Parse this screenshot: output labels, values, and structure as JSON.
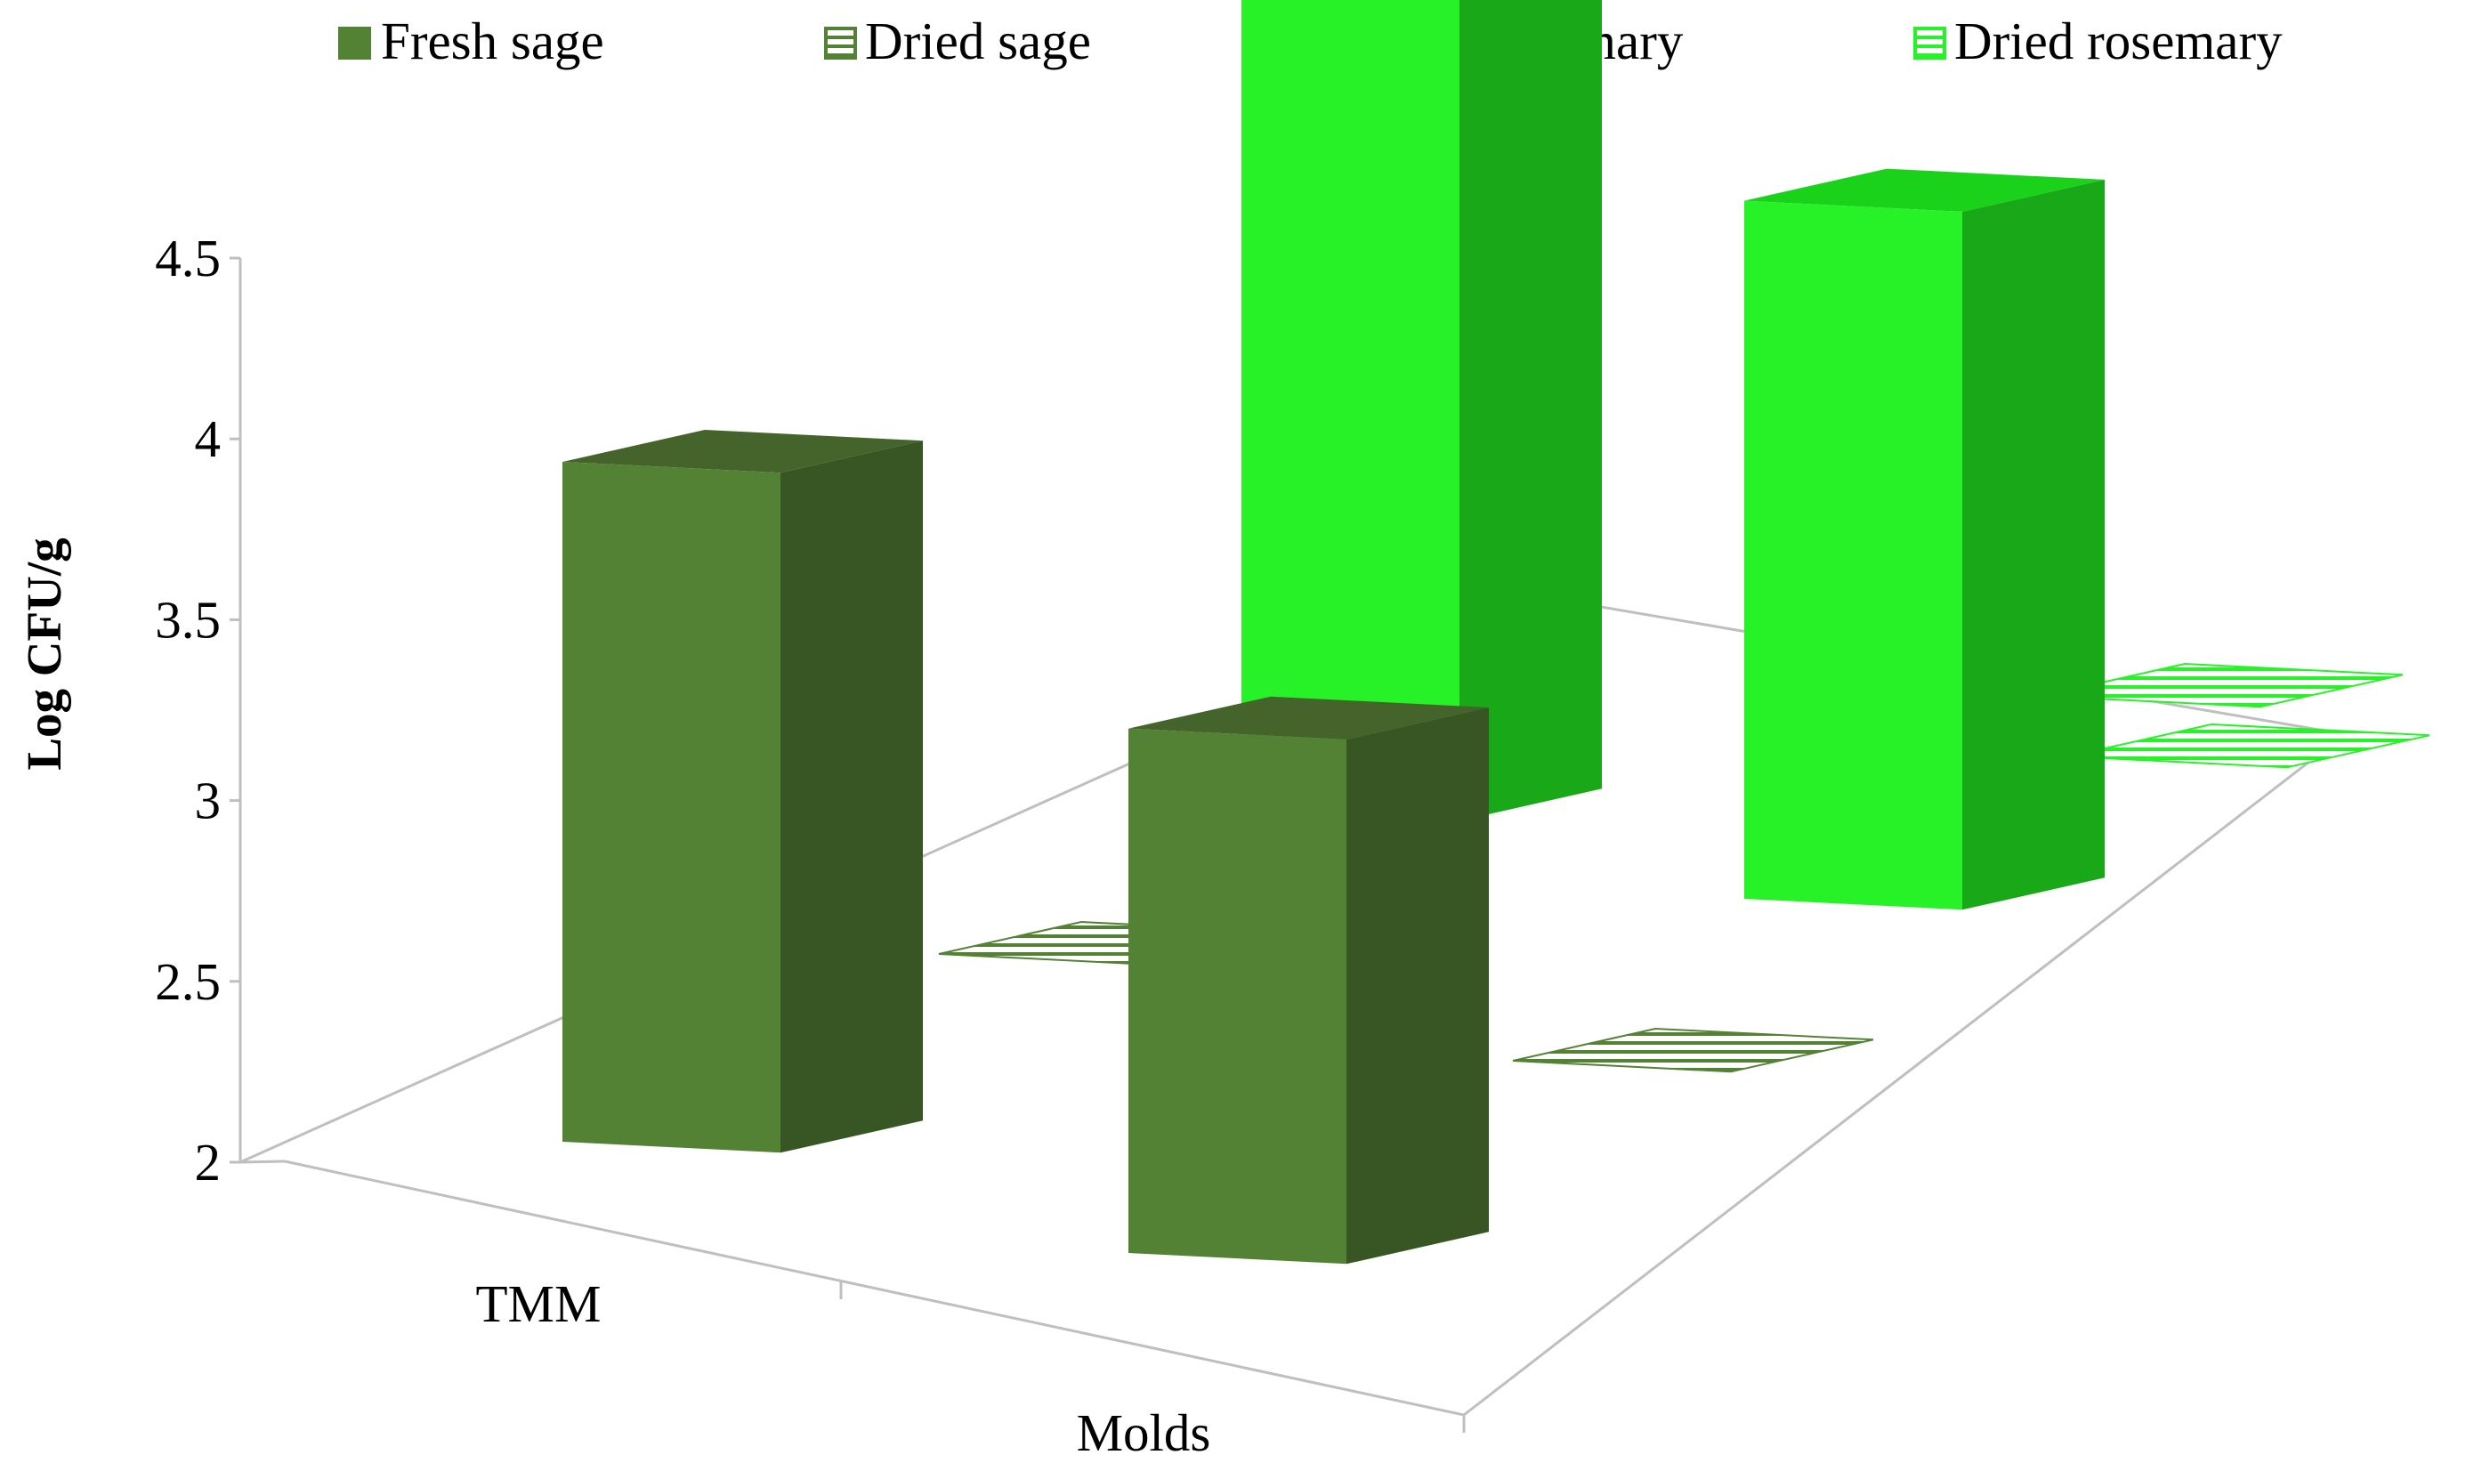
{
  "chart_data": {
    "type": "bar",
    "subtype": "3d-clustered-depth",
    "title": "",
    "xlabel": "",
    "ylabel": "Log CFU/g",
    "ylim": [
      2,
      4.5
    ],
    "yticks": [
      "2",
      "2.5",
      "3",
      "3.5",
      "4",
      "4.5"
    ],
    "ytick_values": [
      2,
      2.5,
      3,
      3.5,
      4,
      4.5
    ],
    "categories": [
      "TMM",
      "Molds"
    ],
    "legend_position": "top",
    "grid": false,
    "series": [
      {
        "name": "Fresh sage",
        "values": [
          3.88,
          3.45
        ],
        "color": "#548235",
        "pattern": "solid"
      },
      {
        "name": "Dried sage",
        "values": [
          2.0,
          2.0
        ],
        "color": "#548235",
        "pattern": "horizontal-stripes"
      },
      {
        "name": "Fresh rosemary",
        "values": [
          4.27,
          3.93
        ],
        "color": "#27f227",
        "pattern": "solid"
      },
      {
        "name": "Dried rosemary",
        "values": [
          2.0,
          2.0
        ],
        "color": "#27f227",
        "pattern": "horizontal-stripes"
      }
    ]
  }
}
